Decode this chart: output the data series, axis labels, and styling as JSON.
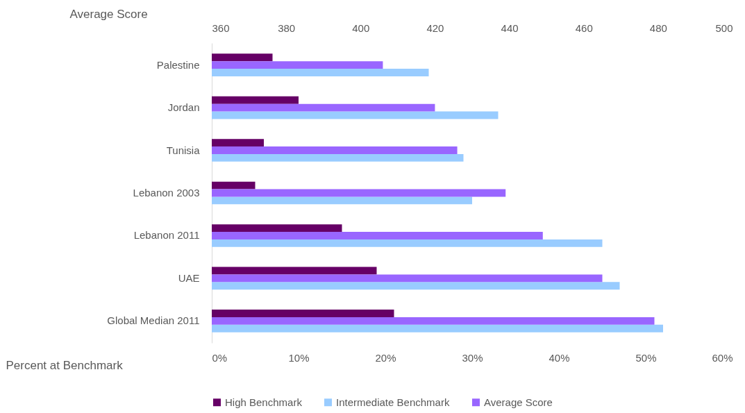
{
  "chart_data": {
    "type": "bar",
    "orientation": "horizontal",
    "xlabel": "Percent at Benchmark",
    "x2label": "Average Score",
    "categories": [
      "Palestine",
      "Jordan",
      "Tunisia",
      "Lebanon 2003",
      "Lebanon 2011",
      "UAE",
      "Global Median 2011"
    ],
    "series": [
      {
        "name": "High Benchmark",
        "color": "#660066",
        "values": [
          7,
          10,
          6,
          5,
          15,
          19,
          21
        ]
      },
      {
        "name": "Intermediate Benchmark",
        "color": "#99ccff",
        "values": [
          25,
          33,
          29,
          30,
          45,
          47,
          52
        ]
      },
      {
        "name": "Average Score",
        "color": "#9966ff",
        "axis": "x2",
        "values": [
          406,
          420,
          426,
          439,
          449,
          465,
          479
        ]
      }
    ],
    "xlim": [
      0,
      60
    ],
    "xticks": [
      {
        "value": 0,
        "label": "0%"
      },
      {
        "value": 10,
        "label": "10%"
      },
      {
        "value": 20,
        "label": "20%"
      },
      {
        "value": 30,
        "label": "30%"
      },
      {
        "value": 40,
        "label": "40%"
      },
      {
        "value": 50,
        "label": "50%"
      },
      {
        "value": 60,
        "label": "60%"
      }
    ],
    "x2lim": [
      360,
      500
    ],
    "x2ticks": [
      360,
      380,
      400,
      420,
      440,
      460,
      480,
      500
    ],
    "grid": false,
    "legend": "bottom"
  }
}
